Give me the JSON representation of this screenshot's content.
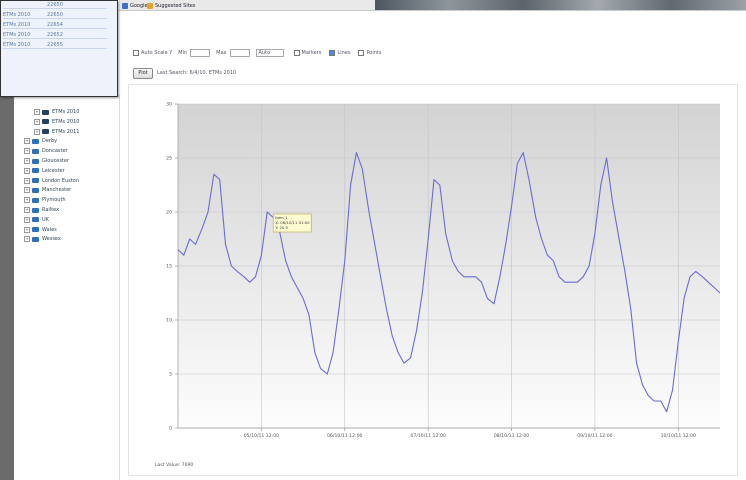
{
  "browser": {
    "tabs": [
      {
        "label": "Google",
        "icon": "google-icon"
      },
      {
        "label": "Suggested Sites",
        "icon": "suggested-sites-icon"
      }
    ]
  },
  "popup": {
    "rows": [
      {
        "left": "",
        "right": "22650"
      },
      {
        "left": "ETMs 2010",
        "right": "22650"
      },
      {
        "left": "ETMs 2010",
        "right": "22654"
      },
      {
        "left": "ETMs 2010",
        "right": "22652"
      },
      {
        "left": "ETMs 2010",
        "right": "22655"
      }
    ]
  },
  "sidebar": {
    "items": [
      {
        "label": "ETMs 2010",
        "icon": "dark-folder-icon",
        "sub": true
      },
      {
        "label": "ETMs 2010",
        "icon": "dark-folder-icon",
        "sub": true
      },
      {
        "label": "ETMs 2011",
        "icon": "dark-folder-icon",
        "sub": true
      },
      {
        "label": "Derby",
        "icon": "folder-icon",
        "sub": false
      },
      {
        "label": "Doncaster",
        "icon": "folder-icon",
        "sub": false
      },
      {
        "label": "Gloucester",
        "icon": "folder-icon",
        "sub": false
      },
      {
        "label": "Leicester",
        "icon": "folder-icon",
        "sub": false
      },
      {
        "label": "London Euston",
        "icon": "folder-icon",
        "sub": false
      },
      {
        "label": "Manchester",
        "icon": "folder-icon",
        "sub": false
      },
      {
        "label": "Plymouth",
        "icon": "folder-icon",
        "sub": false
      },
      {
        "label": "Railtex",
        "icon": "folder-icon",
        "sub": false
      },
      {
        "label": "UK",
        "icon": "folder-icon",
        "sub": false
      },
      {
        "label": "Wales",
        "icon": "folder-icon",
        "sub": false
      },
      {
        "label": "Wessex",
        "icon": "folder-icon",
        "sub": false
      }
    ]
  },
  "controls": {
    "auto_scale_label": "Auto Scale Y",
    "min_label": "Min",
    "max_label": "Max",
    "auto_select": "Auto",
    "option1": "Markers",
    "option2": "Lines",
    "option3": "Points",
    "plot_button": "Plot",
    "last_search": "Last Search: 6/4/10, ETMs 2010"
  },
  "chart_data": {
    "type": "line",
    "yticks": [
      "30",
      "25",
      "20",
      "15",
      "10",
      "5",
      "0"
    ],
    "xticks": [
      "05/10/11 12:00",
      "06/10/11 12:00",
      "07/10/11 12:00",
      "08/10/11 12:00",
      "09/10/11 12:00",
      "10/10/11 12:00"
    ],
    "ylim": [
      0,
      30
    ],
    "grid": true,
    "series": [
      {
        "x": [
          0.0,
          0.07,
          0.14,
          0.21,
          0.29,
          0.36,
          0.43,
          0.5,
          0.57,
          0.64,
          0.71,
          0.79,
          0.86,
          0.93,
          1.0,
          1.07,
          1.14,
          1.21,
          1.29,
          1.36,
          1.43,
          1.5,
          1.57,
          1.64,
          1.71,
          1.79,
          1.86,
          1.93,
          2.0,
          2.07,
          2.14,
          2.21,
          2.29,
          2.36,
          2.43,
          2.5,
          2.57,
          2.64,
          2.71,
          2.79,
          2.86,
          2.93,
          3.0,
          3.07,
          3.14,
          3.21,
          3.29,
          3.36,
          3.43,
          3.5,
          3.57,
          3.64,
          3.71,
          3.79,
          3.86,
          3.93,
          4.0,
          4.07,
          4.14,
          4.21,
          4.29,
          4.36,
          4.43,
          4.5,
          4.57,
          4.64,
          4.71,
          4.79,
          4.86,
          4.93,
          5.0,
          5.07,
          5.14,
          5.21,
          5.29,
          5.36,
          5.43,
          5.5,
          5.57,
          5.64,
          5.71,
          5.79,
          5.86,
          5.93,
          6.0,
          6.07,
          6.14,
          6.21,
          6.29,
          6.36,
          6.43,
          6.5
        ],
        "y": [
          16.5,
          16.0,
          17.5,
          17.0,
          18.5,
          20.0,
          23.5,
          23.0,
          17.0,
          15.0,
          14.5,
          14.0,
          13.5,
          14.0,
          16.0,
          20.0,
          19.5,
          18.5,
          15.5,
          14.0,
          13.0,
          12.0,
          10.5,
          7.0,
          5.5,
          5.0,
          7.0,
          11.0,
          15.5,
          22.5,
          25.5,
          24.0,
          20.0,
          17.0,
          14.0,
          11.0,
          8.5,
          7.0,
          6.0,
          6.5,
          9.0,
          12.5,
          17.5,
          23.0,
          22.5,
          18.0,
          15.5,
          14.5,
          14.0,
          14.0,
          14.0,
          13.5,
          12.0,
          11.5,
          14.0,
          17.0,
          20.5,
          24.5,
          25.5,
          23.0,
          19.5,
          17.5,
          16.0,
          15.5,
          14.0,
          13.5,
          13.5,
          13.5,
          14.0,
          15.0,
          18.0,
          22.5,
          25.0,
          21.0,
          17.5,
          14.5,
          11.0,
          6.0,
          4.0,
          3.0,
          2.5,
          2.5,
          1.5,
          3.5,
          8.0,
          12.0,
          14.0,
          14.5,
          14.0,
          13.5,
          13.0,
          12.5
        ]
      }
    ],
    "xlabel": "Last Value: 7690"
  },
  "tooltip": {
    "line1": "Item 1",
    "line2": "X: 06/10/11 01:00",
    "line3": "Y: 20.5"
  }
}
